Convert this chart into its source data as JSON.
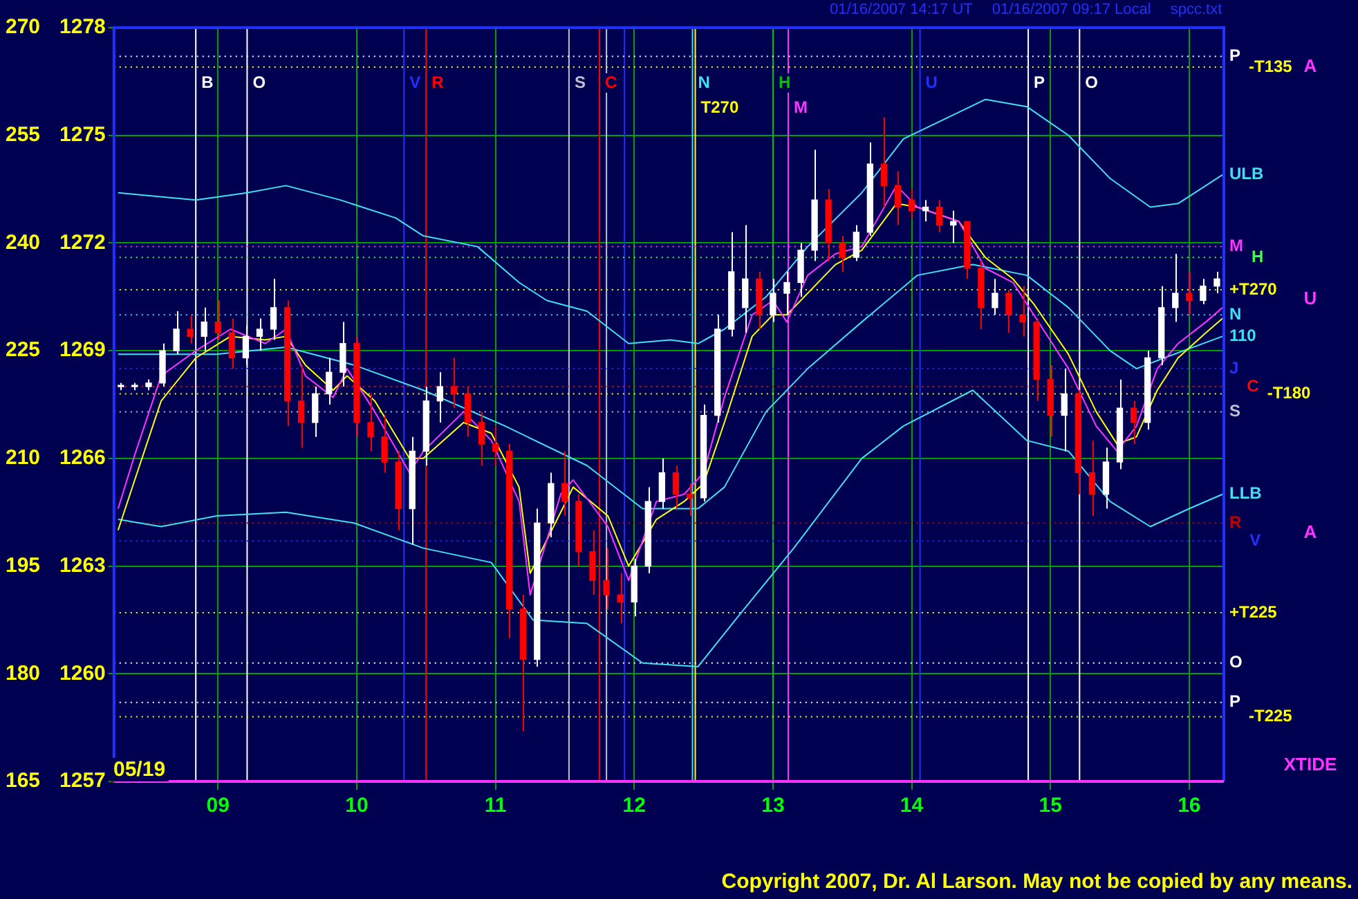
{
  "chart_data": {
    "type": "candlestick",
    "x": [
      8.3,
      8.4,
      8.5,
      8.6,
      8.7,
      8.8,
      8.9,
      9.0,
      9.1,
      9.2,
      9.3,
      9.4,
      9.5,
      9.6,
      9.7,
      9.8,
      9.9,
      10.0,
      10.1,
      10.2,
      10.3,
      10.4,
      10.5,
      10.6,
      10.7,
      10.8,
      10.9,
      11.0,
      11.1,
      11.2,
      11.3,
      11.4,
      11.5,
      11.6,
      11.7,
      11.8,
      11.9,
      12.0,
      12.1,
      12.2,
      12.3,
      12.4,
      12.5,
      12.6,
      12.7,
      12.8,
      12.9,
      13.0,
      13.1,
      13.2,
      13.3,
      13.4,
      13.5,
      13.6,
      13.7,
      13.8,
      13.9,
      14.0,
      14.1,
      14.2,
      14.3,
      14.4,
      14.5,
      14.6,
      14.7,
      14.8,
      14.9,
      15.0,
      15.1,
      15.2,
      15.3,
      15.4,
      15.5,
      15.6,
      15.7,
      15.8,
      15.9,
      16.0,
      16.1,
      16.2
    ],
    "ohlc": [
      [
        1268.0,
        1268.1,
        1267.9,
        1268.0
      ],
      [
        1268.0,
        1268.1,
        1267.9,
        1268.0
      ],
      [
        1268.0,
        1268.2,
        1267.9,
        1268.1
      ],
      [
        1268.1,
        1269.2,
        1268.0,
        1269.0
      ],
      [
        1269.0,
        1270.1,
        1268.9,
        1269.6
      ],
      [
        1269.6,
        1270.0,
        1269.2,
        1269.4
      ],
      [
        1269.4,
        1270.2,
        1269.0,
        1269.8
      ],
      [
        1269.8,
        1270.4,
        1269.3,
        1269.5
      ],
      [
        1269.5,
        1269.9,
        1268.5,
        1268.8
      ],
      [
        1268.8,
        1269.7,
        1268.6,
        1269.4
      ],
      [
        1269.4,
        1269.9,
        1269.0,
        1269.6
      ],
      [
        1269.6,
        1271.0,
        1269.3,
        1270.2
      ],
      [
        1270.2,
        1270.4,
        1266.9,
        1267.6
      ],
      [
        1267.6,
        1268.6,
        1266.3,
        1267.0
      ],
      [
        1267.0,
        1268.0,
        1266.6,
        1267.8
      ],
      [
        1267.8,
        1268.8,
        1267.5,
        1268.4
      ],
      [
        1268.4,
        1269.8,
        1268.0,
        1269.2
      ],
      [
        1269.2,
        1269.4,
        1266.6,
        1267.0
      ],
      [
        1267.0,
        1267.8,
        1266.2,
        1266.6
      ],
      [
        1266.6,
        1267.2,
        1265.6,
        1265.9
      ],
      [
        1265.9,
        1266.2,
        1264.0,
        1264.6
      ],
      [
        1264.6,
        1266.6,
        1263.6,
        1266.2
      ],
      [
        1266.2,
        1268.0,
        1265.8,
        1267.6
      ],
      [
        1267.6,
        1268.4,
        1267.0,
        1268.0
      ],
      [
        1268.0,
        1268.8,
        1267.4,
        1267.8
      ],
      [
        1267.8,
        1268.0,
        1266.6,
        1267.0
      ],
      [
        1267.0,
        1267.3,
        1265.8,
        1266.4
      ],
      [
        1266.4,
        1266.9,
        1265.8,
        1266.2
      ],
      [
        1266.2,
        1266.4,
        1261.0,
        1261.8
      ],
      [
        1261.8,
        1262.2,
        1258.4,
        1260.4
      ],
      [
        1260.4,
        1264.6,
        1260.2,
        1264.2
      ],
      [
        1264.2,
        1265.6,
        1263.8,
        1265.3
      ],
      [
        1265.3,
        1266.2,
        1264.4,
        1264.8
      ],
      [
        1264.8,
        1265.0,
        1263.0,
        1263.4
      ],
      [
        1263.4,
        1264.0,
        1262.2,
        1262.6
      ],
      [
        1262.6,
        1263.5,
        1261.8,
        1262.2
      ],
      [
        1262.2,
        1262.8,
        1261.4,
        1262.0
      ],
      [
        1262.0,
        1263.2,
        1261.6,
        1263.0
      ],
      [
        1263.0,
        1265.2,
        1262.8,
        1264.8
      ],
      [
        1264.8,
        1266.0,
        1264.6,
        1265.6
      ],
      [
        1265.6,
        1265.8,
        1264.6,
        1265.0
      ],
      [
        1265.0,
        1265.3,
        1264.4,
        1264.9
      ],
      [
        1264.9,
        1267.5,
        1264.8,
        1267.2
      ],
      [
        1267.2,
        1270.0,
        1267.0,
        1269.6
      ],
      [
        1269.6,
        1272.3,
        1269.4,
        1271.2
      ],
      [
        1270.2,
        1272.5,
        1269.5,
        1271.0
      ],
      [
        1271.0,
        1271.2,
        1269.6,
        1270.0
      ],
      [
        1270.0,
        1271.0,
        1269.8,
        1270.6
      ],
      [
        1270.6,
        1271.2,
        1270.0,
        1270.9
      ],
      [
        1270.9,
        1272.0,
        1270.5,
        1271.8
      ],
      [
        1271.8,
        1274.6,
        1271.5,
        1273.2
      ],
      [
        1273.2,
        1273.5,
        1271.5,
        1272.0
      ],
      [
        1272.0,
        1272.2,
        1271.2,
        1271.6
      ],
      [
        1271.6,
        1272.5,
        1271.5,
        1272.3
      ],
      [
        1272.3,
        1274.8,
        1272.2,
        1274.2
      ],
      [
        1274.2,
        1275.5,
        1273.0,
        1273.6
      ],
      [
        1273.6,
        1274.0,
        1272.5,
        1273.0
      ],
      [
        1273.2,
        1273.5,
        1272.7,
        1272.9
      ],
      [
        1272.9,
        1273.2,
        1272.6,
        1273.0
      ],
      [
        1273.0,
        1273.2,
        1272.3,
        1272.5
      ],
      [
        1272.5,
        1272.9,
        1272.0,
        1272.6
      ],
      [
        1272.6,
        1272.6,
        1271.0,
        1271.3
      ],
      [
        1271.3,
        1271.5,
        1269.6,
        1270.2
      ],
      [
        1270.2,
        1271.0,
        1270.0,
        1270.6
      ],
      [
        1270.6,
        1270.7,
        1269.5,
        1270.0
      ],
      [
        1270.0,
        1270.8,
        1269.4,
        1269.8
      ],
      [
        1269.8,
        1269.9,
        1267.6,
        1268.2
      ],
      [
        1268.2,
        1268.6,
        1266.6,
        1267.2
      ],
      [
        1267.2,
        1268.5,
        1266.2,
        1267.8
      ],
      [
        1267.8,
        1267.9,
        1265.0,
        1265.6
      ],
      [
        1265.6,
        1266.5,
        1264.4,
        1265.0
      ],
      [
        1265.0,
        1266.3,
        1264.6,
        1265.9
      ],
      [
        1265.9,
        1268.2,
        1265.7,
        1267.4
      ],
      [
        1267.4,
        1267.6,
        1266.4,
        1267.0
      ],
      [
        1267.0,
        1269.0,
        1266.8,
        1268.8
      ],
      [
        1268.8,
        1270.8,
        1268.6,
        1270.2
      ],
      [
        1270.2,
        1271.7,
        1269.8,
        1270.6
      ],
      [
        1270.6,
        1271.2,
        1270.0,
        1270.4
      ],
      [
        1270.4,
        1271.0,
        1270.3,
        1270.8
      ],
      [
        1270.8,
        1271.2,
        1270.6,
        1271.0
      ]
    ],
    "colors": [
      "#ffffff",
      "#ffffff",
      "#ffffff",
      "#ffffff",
      "#ffffff",
      "#ff0000",
      "#ffffff",
      "#ff0000",
      "#ff0000",
      "#ffffff",
      "#ffffff",
      "#ffffff",
      "#ff0000",
      "#ff0000",
      "#ffffff",
      "#ffffff",
      "#ffffff",
      "#ff0000",
      "#ff0000",
      "#ff0000",
      "#ff0000",
      "#ffffff",
      "#ffffff",
      "#ffffff",
      "#ff0000",
      "#ff0000",
      "#ff0000",
      "#ff0000",
      "#ff0000",
      "#ff0000",
      "#ffffff",
      "#ffffff",
      "#ff0000",
      "#ff0000",
      "#ff0000",
      "#ff0000",
      "#ff0000",
      "#ffffff",
      "#ffffff",
      "#ffffff",
      "#ff0000",
      "#ff0000",
      "#ffffff",
      "#ffffff",
      "#ffffff",
      "#ffffff",
      "#ff0000",
      "#ffffff",
      "#ffffff",
      "#ffffff",
      "#ffffff",
      "#ff0000",
      "#ff0000",
      "#ffffff",
      "#ffffff",
      "#ff0000",
      "#ff0000",
      "#ff0000",
      "#ffffff",
      "#ff0000",
      "#ffffff",
      "#ff0000",
      "#ff0000",
      "#ffffff",
      "#ff0000",
      "#ff0000",
      "#ff0000",
      "#ff0000",
      "#ffffff",
      "#ff0000",
      "#ff0000",
      "#ffffff",
      "#ffffff",
      "#ff0000",
      "#ffffff",
      "#ffffff",
      "#ffffff",
      "#ff0000",
      "#ffffff",
      "#ffffff"
    ],
    "series": [
      {
        "type": "line",
        "color": "#ff33ff",
        "x": [
          8.28,
          8.4,
          8.59,
          8.84,
          9.09,
          9.34,
          9.49,
          9.63,
          9.83,
          9.93,
          10.13,
          10.38,
          10.48,
          10.77,
          10.97,
          11.17,
          11.25,
          11.47,
          11.56,
          11.81,
          11.96,
          12.16,
          12.36,
          12.5,
          12.65,
          12.85,
          13.0,
          13.1,
          13.25,
          13.45,
          13.64,
          13.89,
          14.04,
          14.34,
          14.53,
          14.73,
          14.88,
          15.13,
          15.33,
          15.48,
          15.62,
          15.77,
          15.92,
          16.12,
          16.24
        ],
        "values": [
          1264.6,
          1266.1,
          1268.3,
          1269.0,
          1269.6,
          1269.2,
          1269.6,
          1268.3,
          1267.7,
          1268.5,
          1267.3,
          1265.6,
          1266.2,
          1267.3,
          1266.5,
          1264.8,
          1262.2,
          1265.0,
          1265.4,
          1264.1,
          1262.6,
          1264.8,
          1265.0,
          1265.6,
          1267.7,
          1270.0,
          1270.4,
          1269.8,
          1271.1,
          1271.7,
          1271.9,
          1273.6,
          1273.0,
          1272.6,
          1271.3,
          1270.9,
          1270.0,
          1268.5,
          1266.9,
          1266.2,
          1266.9,
          1268.5,
          1269.2,
          1269.8,
          1270.2
        ]
      },
      {
        "type": "line",
        "color": "#ffff00",
        "x": [
          8.28,
          8.4,
          8.59,
          8.84,
          9.09,
          9.34,
          9.49,
          9.63,
          9.83,
          9.93,
          10.13,
          10.38,
          10.48,
          10.77,
          10.97,
          11.17,
          11.25,
          11.47,
          11.56,
          11.81,
          11.96,
          12.16,
          12.36,
          12.5,
          12.65,
          12.85,
          13.0,
          13.1,
          13.25,
          13.45,
          13.64,
          13.89,
          14.04,
          14.34,
          14.53,
          14.73,
          14.88,
          15.13,
          15.33,
          15.48,
          15.62,
          15.77,
          15.92,
          16.12,
          16.24
        ],
        "values": [
          1264.0,
          1265.4,
          1267.6,
          1268.8,
          1269.4,
          1269.3,
          1269.4,
          1268.6,
          1267.9,
          1268.3,
          1267.6,
          1266.0,
          1266.0,
          1267.0,
          1266.7,
          1265.2,
          1262.8,
          1264.5,
          1265.2,
          1264.4,
          1263.0,
          1264.3,
          1264.8,
          1265.3,
          1267.0,
          1269.4,
          1270.0,
          1270.0,
          1270.6,
          1271.4,
          1271.8,
          1273.1,
          1273.0,
          1272.6,
          1271.6,
          1271.0,
          1270.3,
          1268.9,
          1267.3,
          1266.4,
          1266.6,
          1267.9,
          1268.8,
          1269.5,
          1269.9
        ]
      },
      {
        "type": "line",
        "name": "ULB",
        "color": "#40e0f0",
        "x": [
          8.28,
          8.84,
          9.21,
          9.49,
          9.88,
          10.28,
          10.48,
          10.87,
          11.17,
          11.37,
          11.66,
          11.96,
          12.26,
          12.46,
          12.65,
          12.95,
          13.25,
          13.64,
          13.94,
          14.53,
          14.83,
          15.13,
          15.43,
          15.72,
          15.92,
          16.24
        ],
        "values": [
          1273.4,
          1273.2,
          1273.4,
          1273.6,
          1273.2,
          1272.7,
          1272.2,
          1271.9,
          1270.9,
          1270.4,
          1270.1,
          1269.2,
          1269.3,
          1269.2,
          1269.6,
          1270.5,
          1271.9,
          1273.4,
          1274.9,
          1276.0,
          1275.8,
          1275.0,
          1273.8,
          1273.0,
          1273.1,
          1273.9
        ]
      },
      {
        "type": "line",
        "name": "110",
        "color": "#40e0f0",
        "x": [
          8.28,
          8.99,
          9.49,
          9.98,
          10.48,
          11.07,
          11.66,
          12.06,
          12.46,
          12.65,
          12.95,
          13.25,
          13.64,
          14.04,
          14.44,
          14.83,
          15.13,
          15.43,
          15.62,
          15.82,
          16.24
        ],
        "values": [
          1268.9,
          1268.9,
          1269.1,
          1268.6,
          1267.9,
          1266.9,
          1265.8,
          1264.6,
          1264.6,
          1265.2,
          1267.3,
          1268.5,
          1269.8,
          1271.1,
          1271.4,
          1271.1,
          1270.2,
          1269.0,
          1268.5,
          1268.8,
          1269.4
        ]
      },
      {
        "type": "line",
        "name": "LLB",
        "color": "#40e0f0",
        "x": [
          8.28,
          8.59,
          8.99,
          9.49,
          9.98,
          10.48,
          10.97,
          11.27,
          11.66,
          12.06,
          12.46,
          12.75,
          13.15,
          13.64,
          13.94,
          14.44,
          14.83,
          15.13,
          15.43,
          15.72,
          16.0,
          16.24
        ],
        "values": [
          1264.3,
          1264.1,
          1264.4,
          1264.5,
          1264.2,
          1263.5,
          1263.1,
          1261.5,
          1261.4,
          1260.3,
          1260.2,
          1261.6,
          1263.5,
          1266.0,
          1266.9,
          1267.9,
          1266.5,
          1266.2,
          1264.8,
          1264.1,
          1264.6,
          1265.0
        ]
      }
    ],
    "marker": "none",
    "xlim": [
      8.25,
      16.25
    ],
    "xticks": [
      {
        "value": 9,
        "label": "09"
      },
      {
        "value": 10,
        "label": "10"
      },
      {
        "value": 11,
        "label": "11"
      },
      {
        "value": 12,
        "label": "12"
      },
      {
        "value": 13,
        "label": "13"
      },
      {
        "value": 14,
        "label": "14"
      },
      {
        "value": 15,
        "label": "15"
      },
      {
        "value": 16,
        "label": "16"
      }
    ],
    "ylim": [
      1257,
      1278
    ],
    "yticks": [
      1257,
      1260,
      1263,
      1266,
      1269,
      1272,
      1275,
      1278
    ],
    "y2lim": [
      165,
      270
    ],
    "y2ticks": [
      165,
      180,
      195,
      210,
      225,
      240,
      255,
      270
    ],
    "grid": true,
    "xlabel": "05/19",
    "ref_lines": [
      {
        "axis": "x",
        "value": 8.84,
        "color": "#ffffff",
        "label": "B"
      },
      {
        "axis": "x",
        "value": 9.21,
        "color": "#ffffff",
        "label": "O"
      },
      {
        "axis": "x",
        "value": 10.34,
        "color": "#2030ff",
        "label": "V"
      },
      {
        "axis": "x",
        "value": 10.5,
        "color": "#ff0000",
        "label": "R"
      },
      {
        "axis": "x",
        "value": 11.53,
        "color": "#c0c0d0",
        "label": "S"
      },
      {
        "axis": "x",
        "value": 11.75,
        "color": "#ff0000",
        "label": "C"
      },
      {
        "axis": "x",
        "value": 11.8,
        "color": "#c0c0d0"
      },
      {
        "axis": "x",
        "value": 11.93,
        "color": "#2030ff"
      },
      {
        "axis": "x",
        "value": 12.42,
        "color": "#40e0f0",
        "label": "N"
      },
      {
        "axis": "x",
        "value": 12.44,
        "color": "#ffff00",
        "label": "T270"
      },
      {
        "axis": "x",
        "value": 13.0,
        "color": "#00c000",
        "label": "H"
      },
      {
        "axis": "x",
        "value": 13.11,
        "color": "#ff33ff",
        "label": "M"
      },
      {
        "axis": "x",
        "value": 14.06,
        "color": "#2030ff",
        "label": "U"
      },
      {
        "axis": "x",
        "value": 14.84,
        "color": "#ffffff",
        "label": "P"
      },
      {
        "axis": "x",
        "value": 15.21,
        "color": "#ffffff",
        "label": "O"
      },
      {
        "axis": "y",
        "value": 1277.2,
        "color": "#ffffff",
        "line_style": "dotted",
        "label": "P"
      },
      {
        "axis": "y",
        "value": 1276.9,
        "color": "#ffff00",
        "line_style": "dotted",
        "label": "-T135"
      },
      {
        "axis": "y",
        "value": 1271.9,
        "color": "#ff33ff",
        "line_style": "dotted",
        "label": "M"
      },
      {
        "axis": "y",
        "value": 1271.6,
        "color": "#40ff40",
        "line_style": "dotted",
        "label": "H"
      },
      {
        "axis": "y",
        "value": 1270.7,
        "color": "#ffff00",
        "line_style": "dotted",
        "label": "+T270"
      },
      {
        "axis": "y",
        "value": 1270.0,
        "color": "#40e0f0",
        "line_style": "dotted",
        "label": "N"
      },
      {
        "axis": "y",
        "value": 1268.5,
        "color": "#2030ff",
        "line_style": "dotted",
        "label": "J"
      },
      {
        "axis": "y",
        "value": 1268.0,
        "color": "#ff0000",
        "line_style": "dotted",
        "label": "C"
      },
      {
        "axis": "y",
        "value": 1267.8,
        "color": "#ffff00",
        "line_style": "dotted",
        "label": "-T180"
      },
      {
        "axis": "y",
        "value": 1267.3,
        "color": "#c0c0d0",
        "line_style": "dotted",
        "label": "S"
      },
      {
        "axis": "y",
        "value": 1264.2,
        "color": "#c00000",
        "line_style": "dotted",
        "label": "R"
      },
      {
        "axis": "y",
        "value": 1263.7,
        "color": "#2030ff",
        "line_style": "dotted",
        "label": "V"
      },
      {
        "axis": "y",
        "value": 1261.7,
        "color": "#ffff00",
        "line_style": "dotted",
        "label": "+T225"
      },
      {
        "axis": "y",
        "value": 1260.3,
        "color": "#ffffff",
        "line_style": "dotted",
        "label": "O"
      },
      {
        "axis": "y",
        "value": 1259.2,
        "color": "#ffffff",
        "line_style": "dotted",
        "label": "P"
      },
      {
        "axis": "y",
        "value": 1258.8,
        "color": "#ffff00",
        "line_style": "dotted",
        "label": "-T225"
      }
    ],
    "annotations": [
      "01/16/2007 14:17 UT",
      "01/16/2007 09:17 Local",
      "spcc.txt",
      "A",
      "U",
      "A",
      "XTIDE",
      "Copyright 2007, Dr. Al Larson. May not be copied by any means."
    ]
  }
}
